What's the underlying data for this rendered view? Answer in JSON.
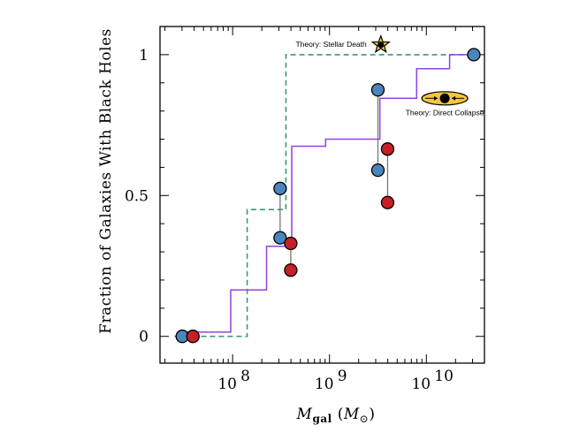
{
  "chart_data": {
    "type": "scatter",
    "title": "",
    "ylabel": "Fraction of Galaxies With Black Holes",
    "xlabel": {
      "symbol": "M",
      "subscript": "gal",
      "unit_open": "(",
      "unit_symbol": "M",
      "unit_subscript": "⊙",
      "unit_close": ")"
    },
    "xscale": "log",
    "xlim_log10": [
      7.25,
      10.6
    ],
    "ylim": [
      -0.095,
      1.1
    ],
    "xticks": [
      {
        "log10": 8,
        "base": "10",
        "exp": "8"
      },
      {
        "log10": 9,
        "base": "10",
        "exp": "9"
      },
      {
        "log10": 10,
        "base": "10",
        "exp": "10"
      }
    ],
    "yticks": [
      {
        "value": 0,
        "label": "0"
      },
      {
        "value": 0.5,
        "label": "0.5"
      },
      {
        "value": 1,
        "label": "1"
      }
    ],
    "colors": {
      "blue": "#4A85BD",
      "red": "#C42026",
      "purple": "#9442E0",
      "green": "#3C9A6A",
      "star": "#F5C542",
      "link": "#777777"
    },
    "series": [
      {
        "name": "dashed-step",
        "style": "dashed",
        "color": "#3C9A6A",
        "steps_log10": [
          [
            7.4,
            0
          ],
          [
            8.15,
            0
          ],
          [
            8.15,
            0.45
          ],
          [
            8.55,
            0.45
          ],
          [
            8.55,
            1.0
          ],
          [
            10.5,
            1.0
          ]
        ]
      },
      {
        "name": "solid-step",
        "style": "solid",
        "color": "#9442E0",
        "steps_log10": [
          [
            7.48,
            0.015
          ],
          [
            7.98,
            0.015
          ],
          [
            7.98,
            0.165
          ],
          [
            8.35,
            0.165
          ],
          [
            8.35,
            0.32
          ],
          [
            8.61,
            0.32
          ],
          [
            8.61,
            0.675
          ],
          [
            8.96,
            0.675
          ],
          [
            8.96,
            0.7
          ],
          [
            9.52,
            0.7
          ],
          [
            9.52,
            0.845
          ],
          [
            9.9,
            0.845
          ],
          [
            9.9,
            0.95
          ],
          [
            10.24,
            0.95
          ],
          [
            10.24,
            1.0
          ],
          [
            10.5,
            1.0
          ]
        ]
      }
    ],
    "points": [
      {
        "group": "blue",
        "x_log10": 7.48,
        "y": 0.0
      },
      {
        "group": "red",
        "x_log10": 7.59,
        "y": 0.0
      },
      {
        "group": "blue",
        "x_log10": 8.49,
        "y": 0.525
      },
      {
        "group": "blue",
        "x_log10": 8.49,
        "y": 0.35
      },
      {
        "group": "red",
        "x_log10": 8.6,
        "y": 0.33
      },
      {
        "group": "red",
        "x_log10": 8.6,
        "y": 0.235
      },
      {
        "group": "blue",
        "x_log10": 9.5,
        "y": 0.875
      },
      {
        "group": "blue",
        "x_log10": 9.5,
        "y": 0.59
      },
      {
        "group": "red",
        "x_log10": 9.6,
        "y": 0.665
      },
      {
        "group": "red",
        "x_log10": 9.6,
        "y": 0.475
      },
      {
        "group": "blue",
        "x_log10": 10.49,
        "y": 1.0
      }
    ],
    "links": [
      {
        "x_log10": 8.49,
        "y1": 0.35,
        "y2": 0.525
      },
      {
        "x_log10": 8.6,
        "y1": 0.235,
        "y2": 0.33
      },
      {
        "x_log10": 9.5,
        "y1": 0.59,
        "y2": 0.875
      },
      {
        "x_log10": 9.6,
        "y1": 0.475,
        "y2": 0.665
      }
    ],
    "annotations": [
      {
        "id": "stellar-death",
        "text": "Theory: Stellar Death",
        "x_log10": 9.53,
        "y": 1.035,
        "marker": "star"
      },
      {
        "id": "direct-collapse",
        "text": "Theory: Direct Collapse",
        "x_log10": 10.19,
        "y": 0.845,
        "marker": "ellipse"
      }
    ]
  }
}
